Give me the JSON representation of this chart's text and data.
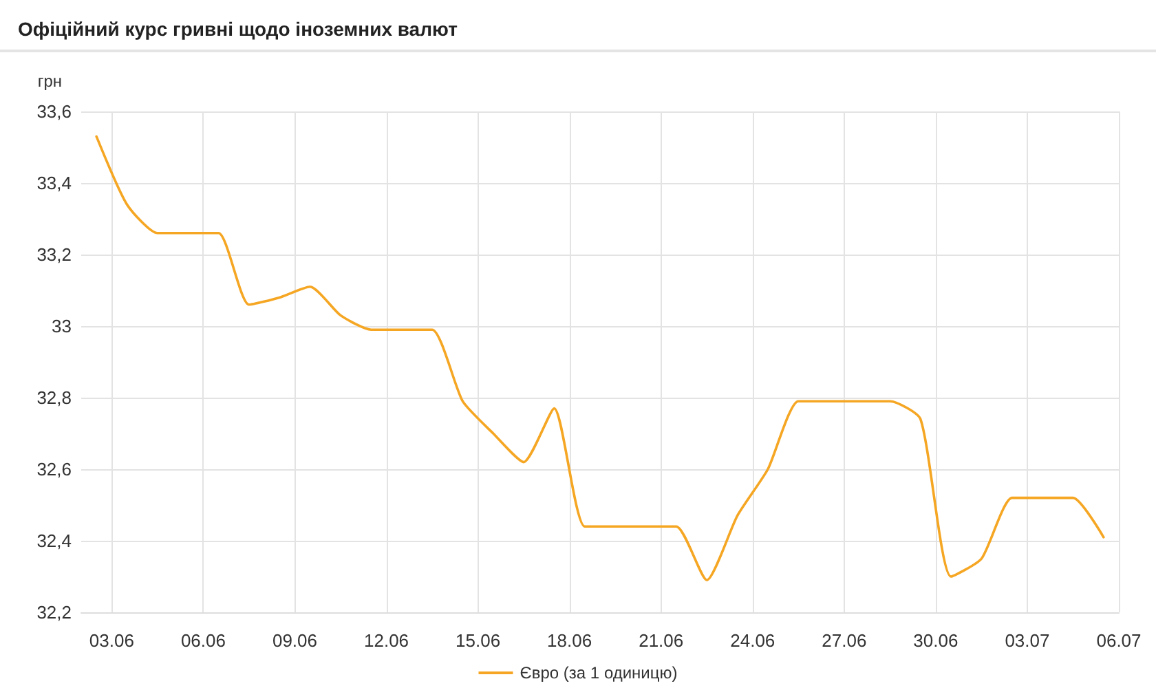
{
  "chart_data": {
    "type": "line",
    "title": "Офіційний курс гривні щодо іноземних валют",
    "ylabel": "грн",
    "x": [
      "--06-02T12:00",
      "--06-03T12:00",
      "--06-04T12:00",
      "--06-05T12:00",
      "--06-06T12:00",
      "--06-07T12:00",
      "--06-08T12:00",
      "--06-09T12:00",
      "--06-10T12:00",
      "--06-11T12:00",
      "--06-12T12:00",
      "--06-13T12:00",
      "--06-14T12:00",
      "--06-15T12:00",
      "--06-16T12:00",
      "--06-17T12:00",
      "--06-18T12:00",
      "--06-19T12:00",
      "--06-20T12:00",
      "--06-21T12:00",
      "--06-22T12:00",
      "--06-23T12:00",
      "--06-24T12:00",
      "--06-25T12:00",
      "--06-26T12:00",
      "--06-27T12:00",
      "--06-28T12:00",
      "--06-29T12:00",
      "--06-30T12:00",
      "--07-01T12:00",
      "--07-02T12:00",
      "--07-03T12:00",
      "--07-04T12:00",
      "--07-05T12:00"
    ],
    "series": [
      {
        "name": "Євро (за 1 одиницю)",
        "color": "#f5a623",
        "values": [
          33.53,
          33.34,
          33.26,
          33.26,
          33.26,
          33.06,
          33.08,
          33.11,
          33.03,
          32.99,
          32.99,
          32.99,
          32.79,
          32.7,
          32.62,
          32.77,
          32.44,
          32.44,
          32.44,
          32.44,
          32.29,
          32.47,
          32.6,
          32.79,
          32.79,
          32.79,
          32.79,
          32.74,
          32.3,
          32.35,
          32.52,
          32.52,
          32.52,
          32.41
        ]
      }
    ],
    "xlim": [
      "--06-02",
      "--07-06"
    ],
    "xticks": [
      {
        "value": "--06-03",
        "label": "03.06"
      },
      {
        "value": "--06-06",
        "label": "06.06"
      },
      {
        "value": "--06-09",
        "label": "09.06"
      },
      {
        "value": "--06-12",
        "label": "12.06"
      },
      {
        "value": "--06-15",
        "label": "15.06"
      },
      {
        "value": "--06-18",
        "label": "18.06"
      },
      {
        "value": "--06-21",
        "label": "21.06"
      },
      {
        "value": "--06-24",
        "label": "24.06"
      },
      {
        "value": "--06-27",
        "label": "27.06"
      },
      {
        "value": "--06-30",
        "label": "30.06"
      },
      {
        "value": "--07-03",
        "label": "03.07"
      },
      {
        "value": "--07-06",
        "label": "06.07"
      }
    ],
    "ylim": [
      32.2,
      33.6
    ],
    "yticks": [
      {
        "value": 32.2,
        "label": "32,2"
      },
      {
        "value": 32.4,
        "label": "32,4"
      },
      {
        "value": 32.6,
        "label": "32,6"
      },
      {
        "value": 32.8,
        "label": "32,8"
      },
      33,
      {
        "value": 33.2,
        "label": "33,2"
      },
      {
        "value": 33.4,
        "label": "33,4"
      },
      {
        "value": 33.6,
        "label": "33,6"
      }
    ],
    "grid": true,
    "legend": "bottom",
    "marker": "none",
    "line_style": "solid"
  }
}
